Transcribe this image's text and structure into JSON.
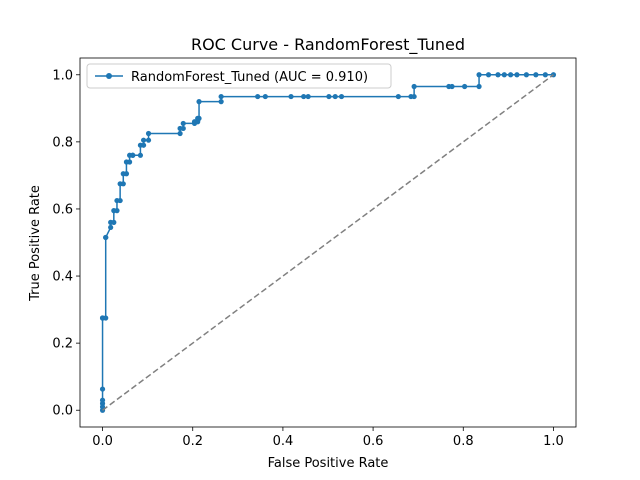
{
  "chart_data": {
    "type": "line",
    "title": "ROC Curve - RandomForest_Tuned",
    "xlabel": "False Positive Rate",
    "ylabel": "True Positive Rate",
    "xlim": [
      -0.05,
      1.05
    ],
    "ylim": [
      -0.05,
      1.05
    ],
    "xticks": [
      "0.0",
      "0.2",
      "0.4",
      "0.6",
      "0.8",
      "1.0"
    ],
    "yticks": [
      "0.0",
      "0.2",
      "0.4",
      "0.6",
      "0.8",
      "1.0"
    ],
    "grid": false,
    "legend_position": "upper-left",
    "series": [
      {
        "name": "RandomForest_Tuned (AUC = 0.910)",
        "color": "#1f77b4",
        "marker": "circle",
        "x": [
          0.0,
          0.0,
          0.0,
          0.0,
          0.0,
          0.0,
          0.0,
          0.007,
          0.007,
          0.007,
          0.018,
          0.018,
          0.025,
          0.025,
          0.032,
          0.032,
          0.039,
          0.039,
          0.046,
          0.046,
          0.053,
          0.053,
          0.06,
          0.06,
          0.067,
          0.067,
          0.084,
          0.084,
          0.091,
          0.091,
          0.102,
          0.102,
          0.172,
          0.172,
          0.179,
          0.179,
          0.204,
          0.204,
          0.211,
          0.211,
          0.214,
          0.214,
          0.263,
          0.263,
          0.344,
          0.361,
          0.418,
          0.446,
          0.456,
          0.502,
          0.516,
          0.53,
          0.656,
          0.684,
          0.691,
          0.691,
          0.768,
          0.775,
          0.803,
          0.835,
          0.835,
          0.856,
          0.877,
          0.891,
          0.905,
          0.919,
          0.94,
          0.961,
          0.982,
          1.0
        ],
        "y": [
          0.0,
          0.01,
          0.02,
          0.03,
          0.063,
          0.275,
          0.275,
          0.275,
          0.515,
          0.515,
          0.545,
          0.56,
          0.56,
          0.595,
          0.595,
          0.625,
          0.625,
          0.675,
          0.675,
          0.705,
          0.705,
          0.74,
          0.74,
          0.76,
          0.76,
          0.76,
          0.76,
          0.79,
          0.79,
          0.805,
          0.805,
          0.825,
          0.825,
          0.84,
          0.84,
          0.855,
          0.855,
          0.86,
          0.86,
          0.87,
          0.87,
          0.92,
          0.92,
          0.935,
          0.935,
          0.935,
          0.935,
          0.935,
          0.935,
          0.935,
          0.935,
          0.935,
          0.935,
          0.935,
          0.935,
          0.965,
          0.965,
          0.965,
          0.965,
          0.965,
          1.0,
          1.0,
          1.0,
          1.0,
          1.0,
          1.0,
          1.0,
          1.0,
          1.0,
          1.0
        ]
      },
      {
        "name": "",
        "color": "#808080",
        "style": "dashed",
        "marker": "none",
        "x": [
          0,
          1
        ],
        "y": [
          0,
          1
        ]
      }
    ]
  }
}
